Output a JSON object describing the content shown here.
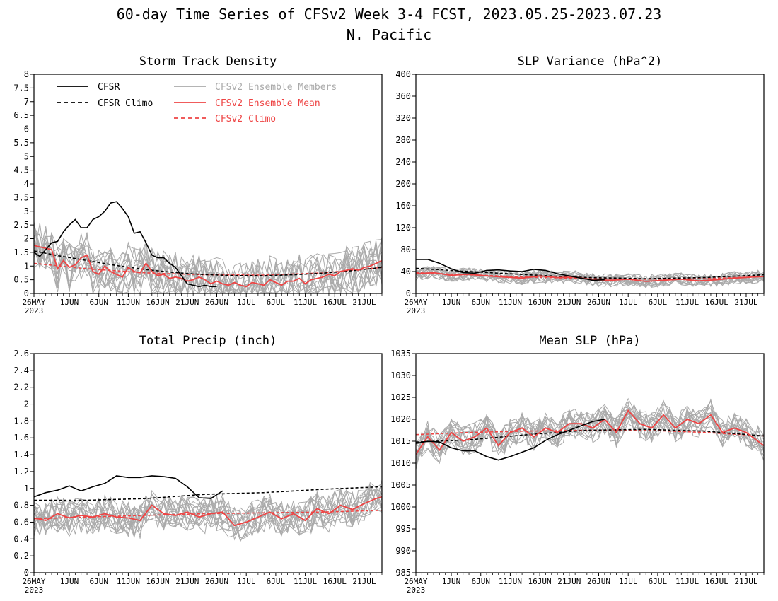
{
  "figure": {
    "title_line1": "60-day Time Series of CFSv2 Week 3-4 FCST, 2023.05.25-2023.07.23",
    "title_line2": "N. Pacific"
  },
  "legend": {
    "cfsr": "CFSR",
    "cfsr_climo": "CFSR Climo",
    "members": "CFSv2 Ensemble Members",
    "ens_mean": "CFSv2 Ensemble Mean",
    "cfsv2_climo": "CFSv2 Climo"
  },
  "colors": {
    "cfsr": "#000000",
    "members": "#aaaaaa",
    "ens_mean": "#ee4444",
    "cfsv2_climo": "#ee4444"
  },
  "chart_data": [
    {
      "type": "line",
      "title": "Storm Track Density",
      "ylim": [
        0,
        8
      ],
      "yticks": [
        "0",
        "0.5",
        "1",
        "1.5",
        "2",
        "2.5",
        "3",
        "3.5",
        "4",
        "4.5",
        "5",
        "5.5",
        "6",
        "6.5",
        "7",
        "7.5",
        "8"
      ],
      "xtick_labels": [
        "26MAY",
        "1JUN",
        "6JUN",
        "11JUN",
        "16JUN",
        "21JUN",
        "26JUN",
        "1JUL",
        "6JUL",
        "11JUL",
        "16JUL",
        "21JUL"
      ],
      "xtick_sub": "2023",
      "x_days": [
        1,
        60
      ],
      "series": [
        {
          "name": "CFSR",
          "x": [
            1,
            2,
            3,
            4,
            5,
            6,
            7,
            8,
            9,
            10,
            11,
            12,
            13,
            14,
            15,
            16,
            17,
            18,
            19,
            20,
            21,
            22,
            23,
            24,
            25,
            26,
            27,
            28,
            29,
            30,
            31,
            32
          ],
          "values": [
            1.5,
            1.35,
            1.6,
            1.85,
            1.9,
            2.25,
            2.5,
            2.7,
            2.4,
            2.4,
            2.7,
            2.8,
            3.0,
            3.3,
            3.35,
            3.1,
            2.8,
            2.2,
            2.25,
            1.85,
            1.4,
            1.3,
            1.3,
            1.1,
            0.95,
            0.65,
            0.35,
            0.3,
            0.25,
            0.3,
            0.25,
            0.25
          ]
        },
        {
          "name": "CFSR Climo",
          "x": [
            1,
            5,
            10,
            15,
            20,
            25,
            30,
            35,
            40,
            45,
            50,
            55,
            60
          ],
          "values": [
            1.55,
            1.38,
            1.2,
            1.02,
            0.87,
            0.76,
            0.69,
            0.65,
            0.65,
            0.68,
            0.74,
            0.83,
            0.95
          ]
        },
        {
          "name": "CFSv2 Ensemble Mean",
          "x": [
            1,
            2,
            3,
            4,
            5,
            6,
            7,
            8,
            9,
            10,
            11,
            12,
            13,
            14,
            15,
            16,
            17,
            18,
            19,
            20,
            21,
            22,
            23,
            24,
            25,
            26,
            27,
            28,
            29,
            30,
            31,
            32,
            33,
            34,
            35,
            36,
            37,
            38,
            39,
            40,
            41,
            42,
            43,
            44,
            45,
            46,
            47,
            48,
            49,
            50,
            51,
            52,
            53,
            54,
            55,
            56,
            57,
            58,
            59,
            60
          ],
          "values": [
            1.75,
            1.7,
            1.65,
            1.6,
            0.9,
            1.2,
            0.95,
            1.05,
            1.3,
            1.4,
            0.8,
            0.7,
            1.0,
            0.8,
            0.7,
            0.6,
            0.95,
            0.8,
            0.75,
            1.1,
            0.8,
            0.65,
            0.7,
            0.55,
            0.6,
            0.55,
            0.45,
            0.5,
            0.6,
            0.5,
            0.35,
            0.45,
            0.35,
            0.3,
            0.4,
            0.3,
            0.25,
            0.4,
            0.35,
            0.3,
            0.5,
            0.4,
            0.3,
            0.45,
            0.45,
            0.55,
            0.35,
            0.5,
            0.55,
            0.6,
            0.7,
            0.65,
            0.8,
            0.85,
            0.9,
            0.85,
            0.95,
            1.0,
            1.1,
            1.2
          ]
        },
        {
          "name": "CFSv2 Climo",
          "x": [
            1,
            10,
            20,
            30,
            40,
            50,
            60
          ],
          "values": [
            1.1,
            0.9,
            0.75,
            0.68,
            0.67,
            0.75,
            0.95
          ]
        }
      ],
      "members": {
        "count": 16,
        "center": "CFSv2 Ensemble Mean",
        "spread": 0.9
      }
    },
    {
      "type": "line",
      "title": "SLP Variance (hPa^2)",
      "ylim": [
        0,
        400
      ],
      "yticks": [
        "0",
        "40",
        "80",
        "120",
        "160",
        "200",
        "240",
        "280",
        "320",
        "360",
        "400"
      ],
      "xtick_labels": [
        "26MAY",
        "1JUN",
        "6JUN",
        "11JUN",
        "16JUN",
        "21JUN",
        "26JUN",
        "1JUL",
        "6JUL",
        "11JUL",
        "16JUL",
        "21JUL"
      ],
      "xtick_sub": "2023",
      "x_days": [
        1,
        60
      ],
      "series": [
        {
          "name": "CFSR",
          "x": [
            1,
            3,
            5,
            7,
            9,
            11,
            13,
            15,
            17,
            19,
            21,
            23,
            25,
            27,
            29,
            31,
            33
          ],
          "values": [
            62,
            62,
            55,
            45,
            38,
            37,
            42,
            43,
            41,
            40,
            44,
            42,
            36,
            32,
            28,
            24,
            25
          ]
        },
        {
          "name": "CFSR Climo",
          "x": [
            1,
            10,
            20,
            30,
            40,
            50,
            60
          ],
          "values": [
            46,
            40,
            34,
            29,
            27,
            29,
            34
          ]
        },
        {
          "name": "CFSv2 Ensemble Mean",
          "x": [
            1,
            4,
            7,
            10,
            13,
            16,
            19,
            22,
            25,
            28,
            31,
            34,
            37,
            40,
            43,
            46,
            49,
            52,
            55,
            58,
            60
          ],
          "values": [
            36,
            38,
            33,
            35,
            32,
            30,
            28,
            32,
            29,
            30,
            25,
            24,
            26,
            22,
            24,
            26,
            23,
            25,
            28,
            30,
            31
          ]
        },
        {
          "name": "CFSv2 Climo",
          "x": [
            1,
            10,
            20,
            30,
            40,
            50,
            60
          ],
          "values": [
            38,
            34,
            30,
            27,
            26,
            27,
            31
          ]
        }
      ],
      "members": {
        "count": 16,
        "center": "CFSv2 Ensemble Mean",
        "spread": 12
      }
    },
    {
      "type": "line",
      "title": "Total Precip (inch)",
      "ylim": [
        0,
        2.6
      ],
      "yticks": [
        "0",
        "0.2",
        "0.4",
        "0.6",
        "0.8",
        "1",
        "1.2",
        "1.4",
        "1.6",
        "1.8",
        "2",
        "2.2",
        "2.4",
        "2.6"
      ],
      "xtick_labels": [
        "26MAY",
        "1JUN",
        "6JUN",
        "11JUN",
        "16JUN",
        "21JUN",
        "26JUN",
        "1JUL",
        "6JUL",
        "11JUL",
        "16JUL",
        "21JUL"
      ],
      "xtick_sub": "2023",
      "x_days": [
        1,
        60
      ],
      "series": [
        {
          "name": "CFSR",
          "x": [
            1,
            3,
            5,
            7,
            9,
            11,
            13,
            15,
            17,
            19,
            21,
            23,
            25,
            27,
            29,
            31,
            33
          ],
          "values": [
            0.9,
            0.95,
            0.98,
            1.03,
            0.97,
            1.02,
            1.06,
            1.15,
            1.13,
            1.13,
            1.15,
            1.14,
            1.12,
            1.02,
            0.89,
            0.88,
            0.97
          ]
        },
        {
          "name": "CFSR Climo",
          "x": [
            1,
            10,
            20,
            30,
            40,
            50,
            60
          ],
          "values": [
            0.86,
            0.86,
            0.88,
            0.93,
            0.95,
            0.99,
            1.02
          ]
        },
        {
          "name": "CFSv2 Ensemble Mean",
          "x": [
            1,
            3,
            5,
            7,
            9,
            11,
            13,
            15,
            17,
            19,
            21,
            23,
            25,
            27,
            29,
            31,
            33,
            35,
            37,
            39,
            41,
            43,
            45,
            47,
            49,
            51,
            53,
            55,
            57,
            59,
            60
          ],
          "values": [
            0.65,
            0.62,
            0.7,
            0.65,
            0.68,
            0.66,
            0.7,
            0.66,
            0.65,
            0.62,
            0.8,
            0.7,
            0.68,
            0.72,
            0.66,
            0.7,
            0.72,
            0.56,
            0.6,
            0.66,
            0.72,
            0.64,
            0.7,
            0.62,
            0.76,
            0.7,
            0.8,
            0.75,
            0.82,
            0.88,
            0.9
          ]
        },
        {
          "name": "CFSv2 Climo",
          "x": [
            1,
            10,
            20,
            30,
            40,
            50,
            60
          ],
          "values": [
            0.64,
            0.66,
            0.68,
            0.7,
            0.71,
            0.72,
            0.74
          ]
        }
      ],
      "members": {
        "count": 16,
        "center": "CFSv2 Ensemble Mean",
        "spread": 0.22
      }
    },
    {
      "type": "line",
      "title": "Mean SLP (hPa)",
      "ylim": [
        985,
        1035
      ],
      "yticks": [
        "985",
        "990",
        "995",
        "1000",
        "1005",
        "1010",
        "1015",
        "1020",
        "1025",
        "1030",
        "1035"
      ],
      "xtick_labels": [
        "26MAY",
        "1JUN",
        "6JUN",
        "11JUN",
        "16JUN",
        "21JUN",
        "26JUN",
        "1JUL",
        "6JUL",
        "11JUL",
        "16JUL",
        "21JUL"
      ],
      "xtick_sub": "2023",
      "x_days": [
        1,
        60
      ],
      "series": [
        {
          "name": "CFSR",
          "x": [
            1,
            3,
            5,
            7,
            9,
            11,
            13,
            15,
            17,
            19,
            21,
            23,
            25,
            27,
            29,
            31,
            33
          ],
          "values": [
            1014.5,
            1015,
            1014.8,
            1013.5,
            1012.8,
            1012.8,
            1011.5,
            1010.7,
            1011.5,
            1012.5,
            1013.5,
            1015.2,
            1016.5,
            1017.5,
            1018.5,
            1019.5,
            1020
          ]
        },
        {
          "name": "CFSR Climo",
          "x": [
            1,
            10,
            20,
            30,
            40,
            50,
            60
          ],
          "values": [
            1014.8,
            1015.3,
            1016.5,
            1017.5,
            1017.7,
            1017.3,
            1016.2
          ]
        },
        {
          "name": "CFSv2 Ensemble Mean",
          "x": [
            1,
            3,
            5,
            7,
            9,
            11,
            13,
            15,
            17,
            19,
            21,
            23,
            25,
            27,
            29,
            31,
            33,
            35,
            37,
            39,
            41,
            43,
            45,
            47,
            49,
            51,
            53,
            55,
            57,
            59,
            60
          ],
          "values": [
            1012,
            1016,
            1013,
            1017,
            1015,
            1016,
            1018,
            1014,
            1017,
            1018,
            1016,
            1018,
            1017,
            1019,
            1019,
            1018,
            1020,
            1017,
            1022,
            1019,
            1018,
            1021,
            1018,
            1020,
            1019,
            1021,
            1017,
            1018,
            1017,
            1015,
            1014
          ]
        },
        {
          "name": "CFSv2 Climo",
          "x": [
            1,
            10,
            20,
            30,
            40,
            50,
            60
          ],
          "values": [
            1016.5,
            1017,
            1017.3,
            1017.5,
            1017.5,
            1017,
            1016.2
          ]
        }
      ],
      "members": {
        "count": 16,
        "center": "CFSv2 Ensemble Mean",
        "spread": 3.5
      }
    }
  ]
}
